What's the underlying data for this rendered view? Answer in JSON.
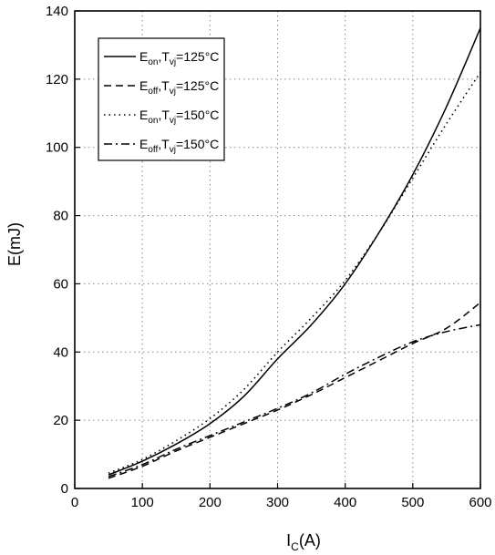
{
  "chart_data": {
    "type": "line",
    "xlabel": {
      "main": "I",
      "sub": "C",
      "suffix": "(A)"
    },
    "ylabel": "E(mJ)",
    "xlim": [
      0,
      600
    ],
    "ylim": [
      0,
      140
    ],
    "xticks": [
      0,
      100,
      200,
      300,
      400,
      500,
      600
    ],
    "yticks": [
      0,
      20,
      40,
      60,
      80,
      100,
      120,
      140
    ],
    "grid": true,
    "legend_position": "top-left",
    "series": [
      {
        "name": "E_on,T_vj=125°C",
        "legend": {
          "main": "E",
          "sub1": "on",
          "mid": ",T",
          "sub2": "vj",
          "tail": "=125°C"
        },
        "style": "solid",
        "x": [
          50,
          100,
          150,
          200,
          250,
          300,
          350,
          400,
          450,
          500,
          550,
          600
        ],
        "y": [
          4,
          8,
          13,
          19,
          27,
          38,
          48,
          60,
          75,
          92,
          112,
          135
        ]
      },
      {
        "name": "E_off,T_vj=125°C",
        "legend": {
          "main": "E",
          "sub1": "off",
          "mid": ",T",
          "sub2": "vj",
          "tail": "=125°C"
        },
        "style": "dashed",
        "x": [
          50,
          100,
          150,
          200,
          250,
          300,
          350,
          400,
          450,
          500,
          550,
          600
        ],
        "y": [
          3,
          6.5,
          11,
          15,
          19,
          23,
          27.5,
          32.5,
          37.5,
          42.5,
          47,
          54.5
        ]
      },
      {
        "name": "E_on,T_vj=150°C",
        "legend": {
          "main": "E",
          "sub1": "on",
          "mid": ",T",
          "sub2": "vj",
          "tail": "=150°C"
        },
        "style": "dotted",
        "x": [
          50,
          100,
          150,
          200,
          250,
          300,
          350,
          400,
          450,
          500,
          550,
          600
        ],
        "y": [
          4.5,
          8.5,
          14,
          20.5,
          29,
          40,
          50,
          61,
          75,
          91,
          107,
          122
        ]
      },
      {
        "name": "E_off,T_vj=150°C",
        "legend": {
          "main": "E",
          "sub1": "off",
          "mid": ",T",
          "sub2": "vj",
          "tail": "=150°C"
        },
        "style": "dashdot",
        "x": [
          50,
          100,
          150,
          200,
          250,
          300,
          350,
          400,
          450,
          500,
          550,
          600
        ],
        "y": [
          3.5,
          7,
          11.5,
          15.5,
          19.5,
          23.5,
          28,
          33.5,
          38.5,
          43,
          46,
          48
        ]
      }
    ]
  }
}
